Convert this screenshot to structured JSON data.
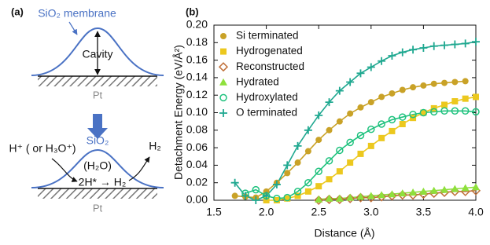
{
  "panel_a": {
    "label": "(a)",
    "top": {
      "membrane": "SiO₂ membrane",
      "cavity": "Cavity",
      "substrate": "Pt"
    },
    "bottom": {
      "membrane": "SiO₂",
      "proton": "H⁺ ( or H₃O⁺)",
      "water": "(H₂O)",
      "reaction": "2H* → H₂",
      "product": "H₂",
      "substrate": "Pt"
    }
  },
  "chart_data": {
    "type": "line",
    "panel_label": "(b)",
    "x_label": "Distance (Å)",
    "y_label": "Detachment Energy (eV/Å²)",
    "x": [
      1.7,
      1.8,
      1.9,
      2.0,
      2.1,
      2.2,
      2.3,
      2.4,
      2.5,
      2.6,
      2.7,
      2.8,
      2.9,
      3.0,
      3.1,
      3.2,
      3.3,
      3.4,
      3.5,
      3.6,
      3.7,
      3.8,
      3.9,
      4.0
    ],
    "xlim": [
      1.5,
      4.0
    ],
    "xticks": [
      {
        "value": 1.5,
        "label": "1.5"
      },
      {
        "value": 2,
        "label": "2.0"
      },
      {
        "value": 2.5,
        "label": "2.5"
      },
      {
        "value": 3,
        "label": "3.0"
      },
      {
        "value": 3.5,
        "label": "3.5"
      },
      {
        "value": 4,
        "label": "4.0"
      }
    ],
    "ylim": [
      0,
      0.2
    ],
    "yticks": [
      {
        "value": 0,
        "label": "0.00"
      },
      {
        "value": 0.02,
        "label": "0.02"
      },
      {
        "value": 0.04,
        "label": "0.04"
      },
      {
        "value": 0.06,
        "label": "0.06"
      },
      {
        "value": 0.08,
        "label": "0.08"
      },
      {
        "value": 0.1,
        "label": "0.10"
      },
      {
        "value": 0.12,
        "label": "0.12"
      },
      {
        "value": 0.14,
        "label": "0.14"
      },
      {
        "value": 0.16,
        "label": "0.16"
      },
      {
        "value": 0.18,
        "label": "0.18"
      },
      {
        "value": 0.2,
        "label": "0.20"
      }
    ],
    "grid": false,
    "legend": "upper-left",
    "series": [
      {
        "name": "Si terminated",
        "color": "#c9a227",
        "marker": "circle",
        "values": [
          0.005,
          0.004,
          0.003,
          0.01,
          0.02,
          0.031,
          0.043,
          0.056,
          0.069,
          0.08,
          0.09,
          0.099,
          0.106,
          0.112,
          0.118,
          0.122,
          0.126,
          0.129,
          0.131,
          0.133,
          0.134,
          0.135,
          0.136,
          null
        ]
      },
      {
        "name": "Hydrogenated",
        "color": "#ecc81e",
        "marker": "square",
        "values": [
          null,
          null,
          null,
          0.0,
          0.0,
          0.002,
          0.005,
          0.01,
          0.016,
          0.024,
          0.033,
          0.043,
          0.053,
          0.062,
          0.071,
          0.079,
          0.087,
          0.094,
          0.1,
          0.105,
          0.109,
          0.113,
          0.116,
          0.118
        ]
      },
      {
        "name": "Reconstructed",
        "color": "#c0703a",
        "marker": "diamond",
        "values": [
          null,
          null,
          null,
          null,
          null,
          null,
          null,
          null,
          0.0,
          0.001,
          0.001,
          0.002,
          0.003,
          0.003,
          0.004,
          0.005,
          0.006,
          0.006,
          0.007,
          0.008,
          0.009,
          0.01,
          0.01,
          0.011
        ]
      },
      {
        "name": "Hydrated",
        "color": "#8ee03c",
        "marker": "triangle",
        "values": [
          null,
          null,
          null,
          null,
          null,
          null,
          null,
          null,
          0.001,
          0.002,
          0.002,
          0.003,
          0.004,
          0.005,
          0.006,
          0.007,
          0.008,
          0.009,
          0.01,
          0.011,
          0.012,
          0.013,
          0.014,
          0.015
        ]
      },
      {
        "name": "Hydroxylated",
        "color": "#1fc27e",
        "marker": "open-circle",
        "values": [
          null,
          0.008,
          0.012,
          0.005,
          0.002,
          0.003,
          0.01,
          0.02,
          0.033,
          0.045,
          0.057,
          0.066,
          0.074,
          0.081,
          0.087,
          0.092,
          0.095,
          0.098,
          0.1,
          0.101,
          0.102,
          0.102,
          0.102,
          0.101
        ]
      },
      {
        "name": "O terminated",
        "color": "#1fa890",
        "marker": "plus",
        "values": [
          0.02,
          0.005,
          0.0,
          0.005,
          0.018,
          0.04,
          0.062,
          0.08,
          0.097,
          0.112,
          0.125,
          0.135,
          0.145,
          0.152,
          0.159,
          0.165,
          0.169,
          0.172,
          0.174,
          0.176,
          0.177,
          0.178,
          0.179,
          0.181
        ]
      }
    ]
  }
}
